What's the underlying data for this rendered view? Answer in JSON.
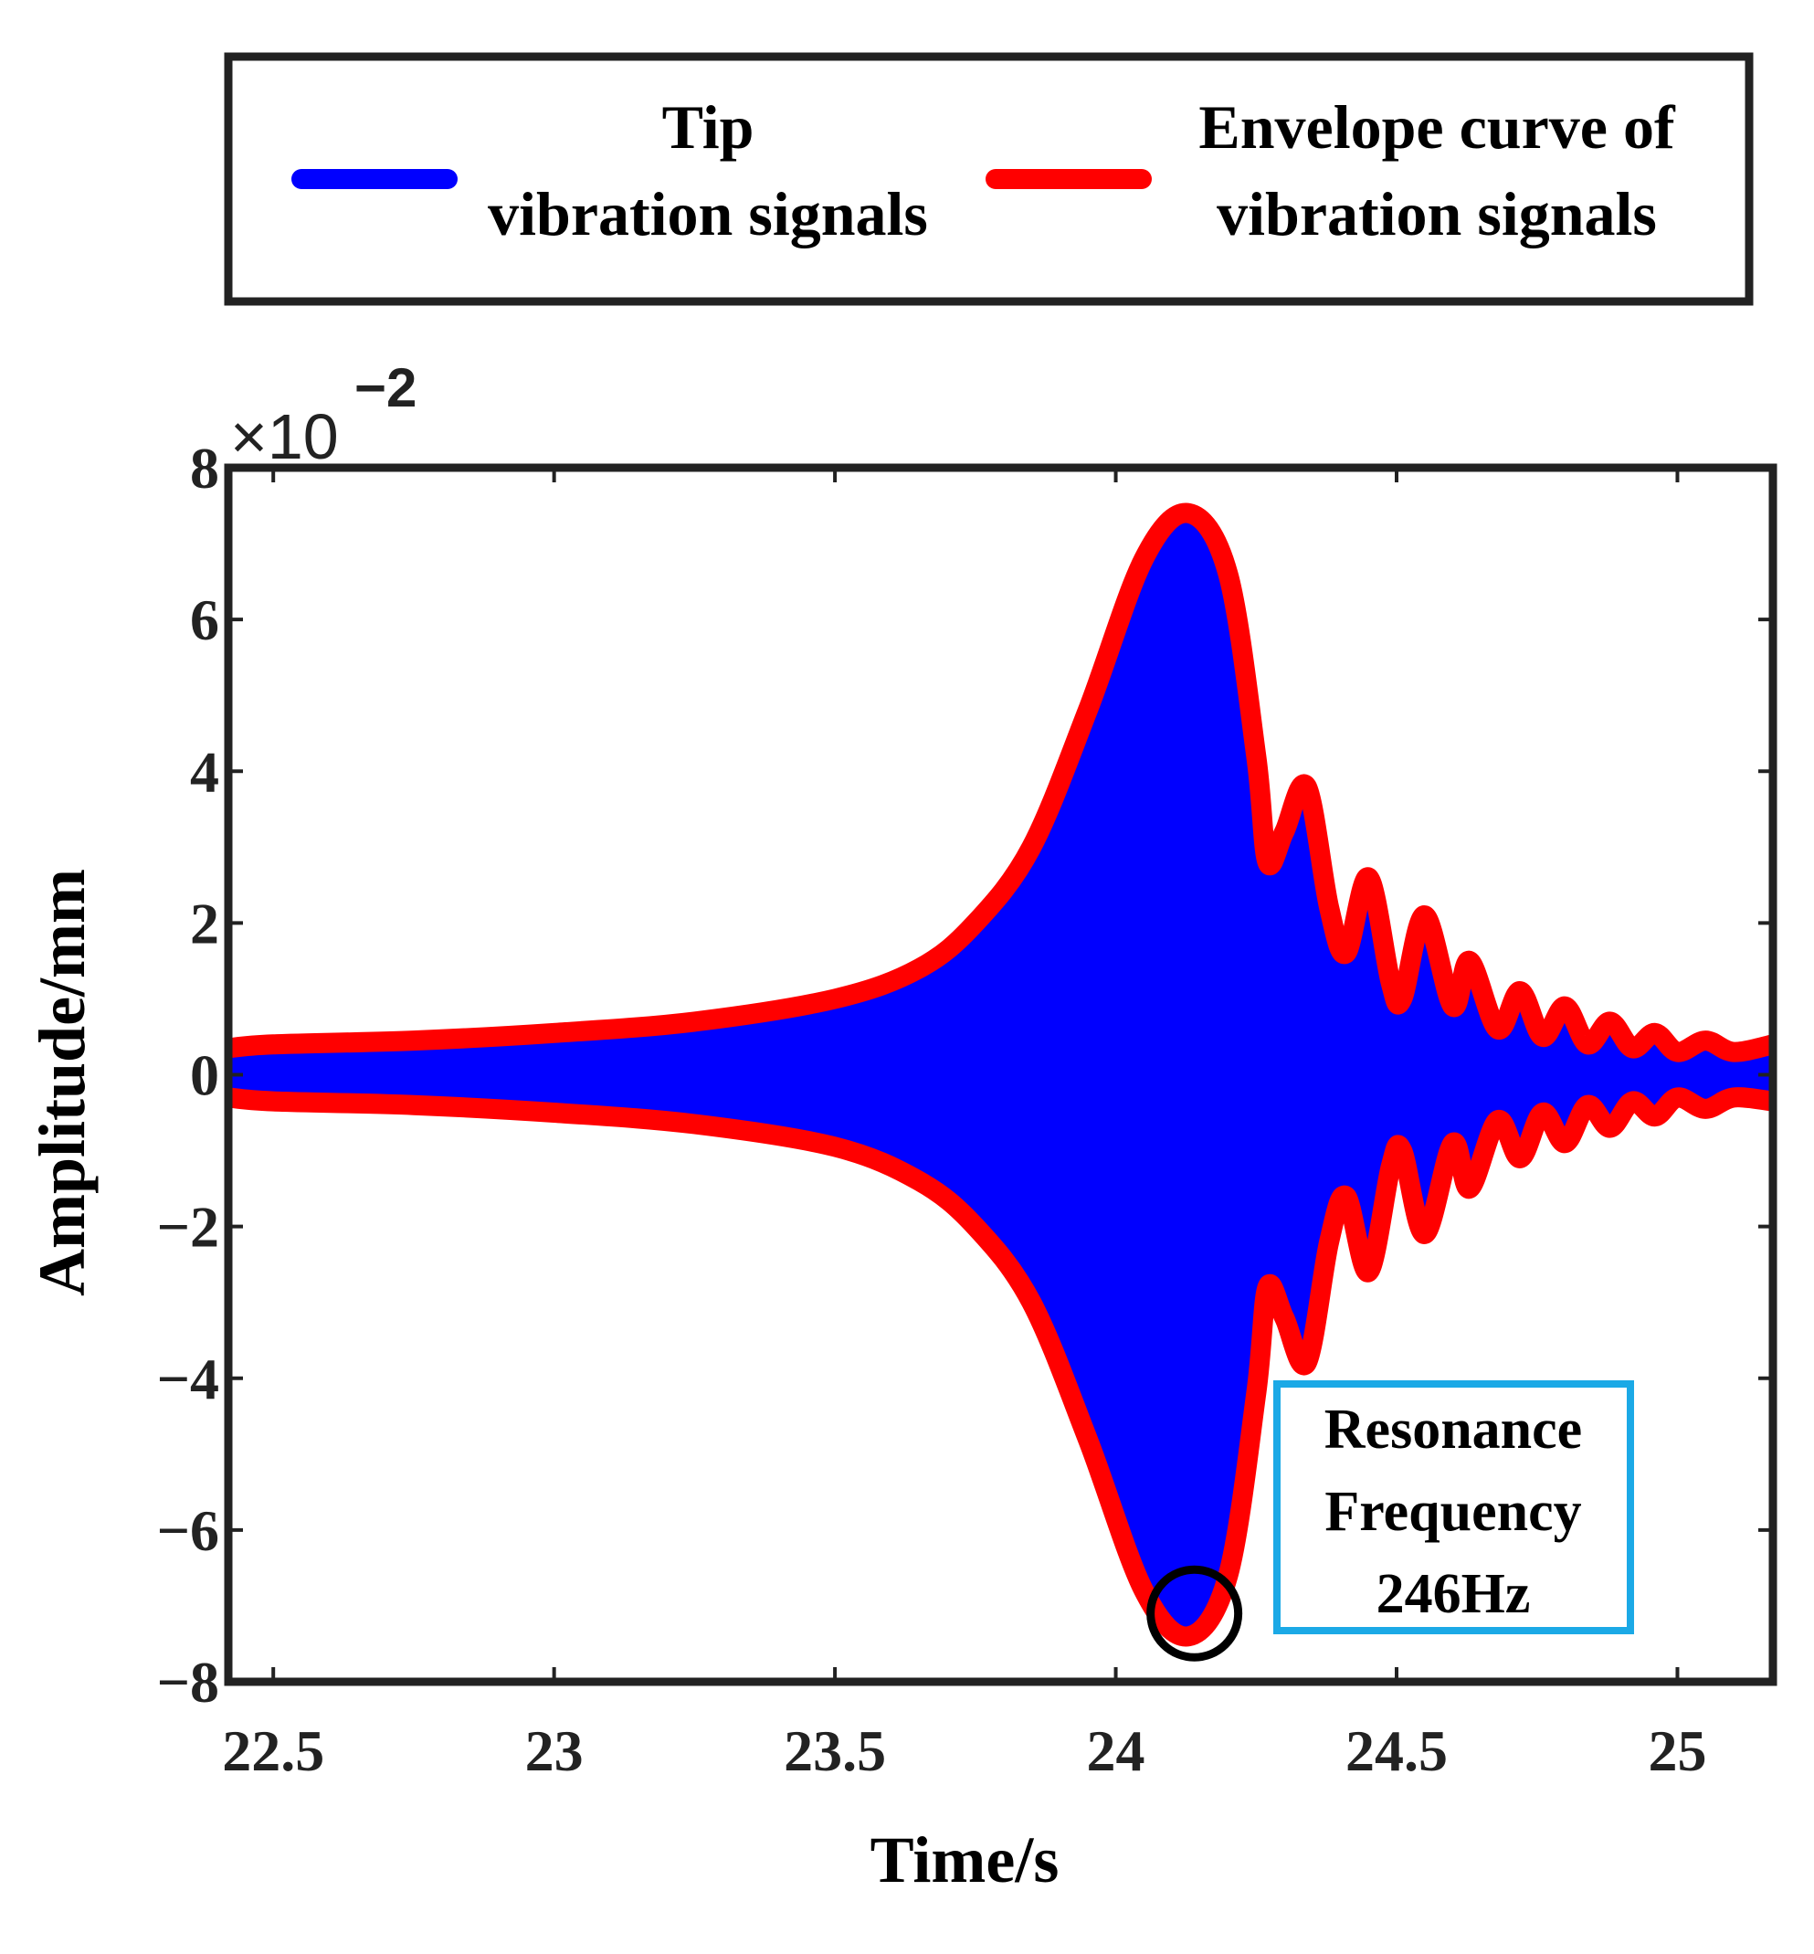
{
  "chart_data": {
    "type": "line",
    "title": "",
    "xlabel": "Time/s",
    "ylabel": "Amplitude/mm",
    "xlim": [
      22.42,
      25.17
    ],
    "ylim": [
      -8,
      8
    ],
    "y_scale_multiplier": "×10",
    "y_scale_exponent": "−2",
    "x_ticks": [
      {
        "value": 22.5,
        "label": "22.5"
      },
      {
        "value": 23,
        "label": "23"
      },
      {
        "value": 23.5,
        "label": "23.5"
      },
      {
        "value": 24,
        "label": "24"
      },
      {
        "value": 24.5,
        "label": "24.5"
      },
      {
        "value": 25,
        "label": "25"
      }
    ],
    "y_ticks": [
      {
        "value": 8,
        "label": "8"
      },
      {
        "value": 6,
        "label": "6"
      },
      {
        "value": 4,
        "label": "4"
      },
      {
        "value": 2,
        "label": "2"
      },
      {
        "value": 0,
        "label": "0"
      },
      {
        "value": -2,
        "label": "−2"
      },
      {
        "value": -4,
        "label": "−4"
      },
      {
        "value": -6,
        "label": "−6"
      },
      {
        "value": -8,
        "label": "−8"
      }
    ],
    "legend": {
      "placement": "top",
      "entries": [
        {
          "line1": "Tip",
          "line2": "vibration signals",
          "color": "#0000ff"
        },
        {
          "line1": "Envelope curve of",
          "line2": "vibration signals",
          "color": "#ff0000"
        }
      ]
    },
    "series": [
      {
        "name": "Envelope curve of vibration signals (upper)",
        "color": "#ff0000",
        "x": [
          22.42,
          22.5,
          22.75,
          23.0,
          23.25,
          23.5,
          23.65,
          23.75,
          23.85,
          23.95,
          24.05,
          24.13,
          24.2,
          24.25,
          24.27,
          24.3,
          24.34,
          24.38,
          24.41,
          24.45,
          24.49,
          24.51,
          24.55,
          24.6,
          24.63,
          24.68,
          24.72,
          24.76,
          24.8,
          24.84,
          24.88,
          24.92,
          24.96,
          25.0,
          25.05,
          25.1,
          25.17
        ],
        "y": [
          0.35,
          0.4,
          0.45,
          0.55,
          0.7,
          1.0,
          1.4,
          2.0,
          3.0,
          4.8,
          6.8,
          7.4,
          6.6,
          4.2,
          2.8,
          3.2,
          3.8,
          2.2,
          1.6,
          2.6,
          1.2,
          1.0,
          2.1,
          0.9,
          1.5,
          0.6,
          1.1,
          0.5,
          0.9,
          0.4,
          0.7,
          0.35,
          0.55,
          0.3,
          0.45,
          0.3,
          0.4
        ]
      },
      {
        "name": "Envelope curve of vibration signals (lower)",
        "color": "#ff0000",
        "x": [
          22.42,
          22.5,
          22.75,
          23.0,
          23.25,
          23.5,
          23.65,
          23.75,
          23.85,
          23.95,
          24.05,
          24.13,
          24.2,
          24.25,
          24.27,
          24.3,
          24.34,
          24.38,
          24.41,
          24.45,
          24.49,
          24.51,
          24.55,
          24.6,
          24.63,
          24.68,
          24.72,
          24.76,
          24.8,
          24.84,
          24.88,
          24.92,
          24.96,
          25.0,
          25.05,
          25.1,
          25.17
        ],
        "y": [
          -0.3,
          -0.35,
          -0.4,
          -0.5,
          -0.65,
          -0.95,
          -1.4,
          -2.0,
          -3.0,
          -4.8,
          -6.8,
          -7.4,
          -6.6,
          -4.2,
          -2.8,
          -3.2,
          -3.8,
          -2.2,
          -1.6,
          -2.6,
          -1.2,
          -1.0,
          -2.1,
          -0.9,
          -1.5,
          -0.6,
          -1.1,
          -0.5,
          -0.9,
          -0.4,
          -0.7,
          -0.35,
          -0.55,
          -0.3,
          -0.45,
          -0.3,
          -0.35
        ]
      },
      {
        "name": "Tip vibration signals",
        "color": "#0000ff",
        "description_of_data": "dense oscillation filling the envelope"
      }
    ],
    "annotations": [
      {
        "type": "circle-marker",
        "x": 24.14,
        "y": -7.1,
        "color": "#000000"
      },
      {
        "type": "text-box",
        "lines": [
          "Resonance",
          "Frequency",
          "246Hz"
        ],
        "border_color": "#1ba9e6"
      }
    ]
  }
}
